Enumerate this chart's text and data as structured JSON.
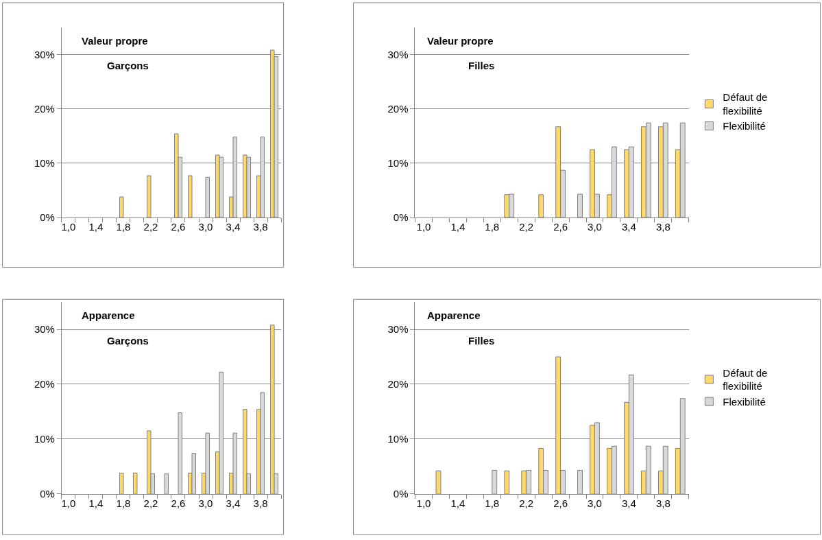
{
  "chart_data": [
    {
      "type": "bar",
      "title": "Valeur propre",
      "subtitle": "Garçons",
      "categories": [
        "1,0",
        null,
        "1,4",
        null,
        "1,8",
        null,
        "2,2",
        null,
        "2,6",
        null,
        "3,0",
        null,
        "3,4",
        null,
        "3,8",
        null
      ],
      "ylim": [
        0,
        35
      ],
      "yticks": [
        {
          "value": 0,
          "label": "0%"
        },
        {
          "value": 10,
          "label": "10%"
        },
        {
          "value": 20,
          "label": "20%"
        },
        {
          "value": 30,
          "label": "30%"
        }
      ],
      "grid": "y",
      "legend": false,
      "series": [
        {
          "color": "#ffd966",
          "values": [
            null,
            null,
            null,
            null,
            3.8,
            null,
            7.7,
            null,
            15.4,
            7.7,
            null,
            11.5,
            3.8,
            11.5,
            7.7,
            30.8
          ]
        },
        {
          "color": "#d9d9d9",
          "values": [
            null,
            null,
            null,
            null,
            null,
            null,
            null,
            null,
            11.1,
            null,
            7.4,
            11.1,
            14.8,
            11.1,
            14.8,
            29.6
          ]
        }
      ]
    },
    {
      "type": "bar",
      "title": "Valeur propre",
      "subtitle": "Filles",
      "categories": [
        "1,0",
        null,
        "1,4",
        null,
        "1,8",
        null,
        "2,2",
        null,
        "2,6",
        null,
        "3,0",
        null,
        "3,4",
        null,
        "3,8",
        null
      ],
      "ylim": [
        0,
        35
      ],
      "yticks": [
        {
          "value": 0,
          "label": "0%"
        },
        {
          "value": 10,
          "label": "10%"
        },
        {
          "value": 20,
          "label": "20%"
        },
        {
          "value": 30,
          "label": "30%"
        }
      ],
      "grid": "y",
      "legend": "right",
      "series": [
        {
          "name": "Défaut de flexibilité",
          "color": "#ffd966",
          "values": [
            null,
            null,
            null,
            null,
            null,
            4.2,
            null,
            4.2,
            16.7,
            null,
            12.5,
            4.2,
            12.5,
            16.7,
            16.7,
            12.5
          ]
        },
        {
          "name": "Flexibilité",
          "color": "#d9d9d9",
          "values": [
            null,
            null,
            null,
            null,
            null,
            4.3,
            null,
            null,
            8.7,
            4.3,
            4.3,
            13.0,
            13.0,
            17.4,
            17.4,
            17.4
          ]
        }
      ]
    },
    {
      "type": "bar",
      "title": "Apparence",
      "subtitle": "Garçons",
      "categories": [
        "1,0",
        null,
        "1,4",
        null,
        "1,8",
        null,
        "2,2",
        null,
        "2,6",
        null,
        "3,0",
        null,
        "3,4",
        null,
        "3,8",
        null
      ],
      "ylim": [
        0,
        35
      ],
      "yticks": [
        {
          "value": 0,
          "label": "0%"
        },
        {
          "value": 10,
          "label": "10%"
        },
        {
          "value": 20,
          "label": "20%"
        },
        {
          "value": 30,
          "label": "30%"
        }
      ],
      "grid": "y",
      "legend": false,
      "series": [
        {
          "color": "#ffd966",
          "values": [
            null,
            null,
            null,
            null,
            3.8,
            3.8,
            11.5,
            null,
            null,
            3.8,
            3.8,
            7.7,
            3.8,
            15.4,
            15.4,
            30.8
          ]
        },
        {
          "color": "#d9d9d9",
          "values": [
            null,
            null,
            null,
            null,
            null,
            null,
            3.7,
            3.7,
            14.8,
            7.4,
            11.1,
            22.2,
            11.1,
            3.7,
            18.5,
            3.7
          ]
        }
      ]
    },
    {
      "type": "bar",
      "title": "Apparence",
      "subtitle": "Filles",
      "categories": [
        "1,0",
        null,
        "1,4",
        null,
        "1,8",
        null,
        "2,2",
        null,
        "2,6",
        null,
        "3,0",
        null,
        "3,4",
        null,
        "3,8",
        null
      ],
      "ylim": [
        0,
        35
      ],
      "yticks": [
        {
          "value": 0,
          "label": "0%"
        },
        {
          "value": 10,
          "label": "10%"
        },
        {
          "value": 20,
          "label": "20%"
        },
        {
          "value": 30,
          "label": "30%"
        }
      ],
      "grid": "y",
      "legend": "right",
      "series": [
        {
          "name": "Défaut de flexibilité",
          "color": "#ffd966",
          "values": [
            null,
            4.2,
            null,
            null,
            null,
            4.2,
            4.2,
            8.3,
            25.0,
            null,
            12.5,
            8.3,
            16.7,
            4.2,
            4.2,
            8.3
          ]
        },
        {
          "name": "Flexibilité",
          "color": "#d9d9d9",
          "values": [
            null,
            null,
            null,
            null,
            4.3,
            null,
            4.3,
            4.3,
            4.3,
            4.3,
            13.0,
            8.7,
            21.7,
            8.7,
            8.7,
            17.4
          ]
        }
      ]
    }
  ]
}
